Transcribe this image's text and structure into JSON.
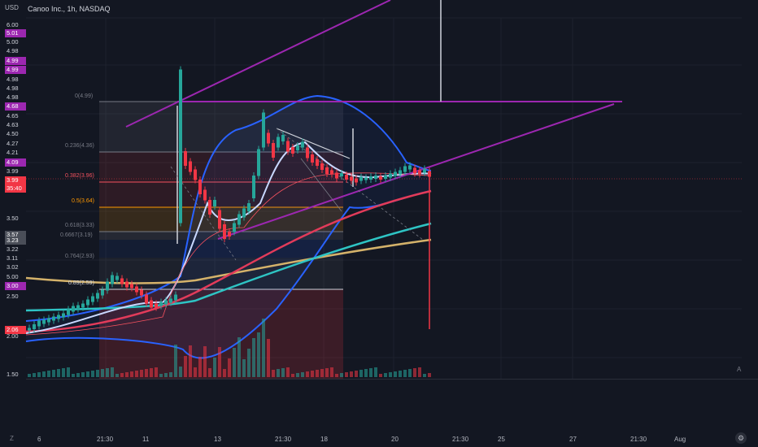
{
  "header": {
    "currency": "USD",
    "symbol_line": "Canoo Inc., 1h, NASDAQ"
  },
  "price_scale": {
    "ticks": [
      "6.00",
      "5.00",
      "4.98",
      "4.98",
      "4.65",
      "4.63",
      "4.50",
      "4.27",
      "4.21",
      "3.99",
      "3.50",
      "3.22",
      "3.11",
      "3.02",
      "2.50",
      "2.00",
      "1.50"
    ],
    "badges": [
      {
        "text": "5.01",
        "color": "#9c27b0"
      },
      {
        "text": "4.99",
        "color": "#9c27b0"
      },
      {
        "text": "4.99",
        "color": "#9c27b0"
      },
      {
        "text": "4.68",
        "color": "#9c27b0"
      },
      {
        "text": "4.09",
        "color": "#9c27b0"
      },
      {
        "text": "3.99",
        "color": "#f23645"
      },
      {
        "text": "35:40",
        "color": "#f23645"
      },
      {
        "text": "3.57",
        "color": "#4a4e58"
      },
      {
        "text": "3.23",
        "color": "#4a4e58"
      },
      {
        "text": "3.00",
        "color": "#9c27b0"
      },
      {
        "text": "2.06",
        "color": "#f23645"
      }
    ]
  },
  "fib_levels": [
    {
      "label": "0(4.99)",
      "color": "#787b86"
    },
    {
      "label": "0.236(4.36)",
      "color": "#787b86"
    },
    {
      "label": "0.382(3.96)",
      "color": "#f7525f"
    },
    {
      "label": "0.5(3.64)",
      "color": "#ff9800"
    },
    {
      "label": "0.618(3.33)",
      "color": "#787b86"
    },
    {
      "label": "0.6667(3.19)",
      "color": "#787b86"
    },
    {
      "label": "0.764(2.93)",
      "color": "#787b86"
    },
    {
      "label": "0.89(2.59)",
      "color": "#d1d4dc"
    }
  ],
  "time_axis": {
    "ticks": [
      "6",
      "21:30",
      "11",
      "13",
      "21:30",
      "18",
      "20",
      "21:30",
      "25",
      "27",
      "21:30",
      "Aug"
    ],
    "left_button": "Z",
    "gear_label": "⚙"
  },
  "lower_pane": {
    "right_control": "A"
  },
  "colors": {
    "bg": "#131722",
    "up": "#26a69a",
    "down": "#f23645",
    "purple": "#9c27b0",
    "ma_cyan": "#2ec4c4",
    "ma_gold": "#d4b26a",
    "ma_red": "#e23b5a",
    "bb_blue": "#2962ff"
  }
}
